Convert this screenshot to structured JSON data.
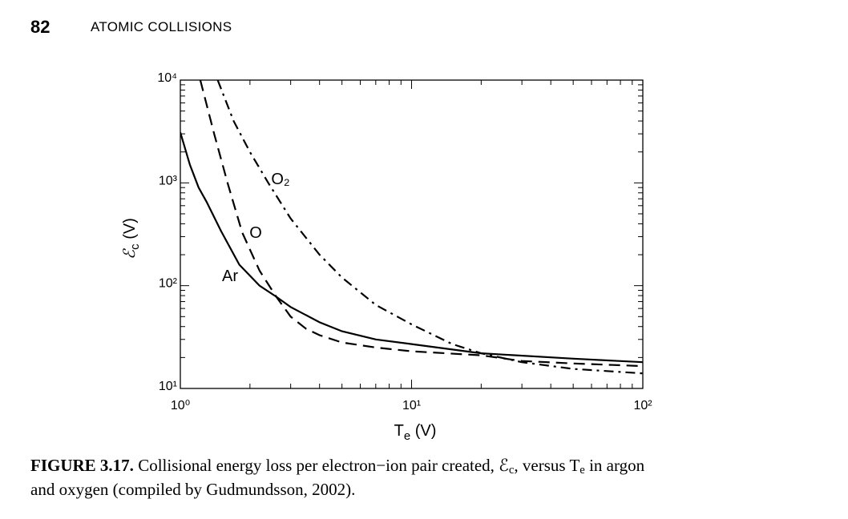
{
  "header": {
    "page_number": "82",
    "title": "ATOMIC COLLISIONS"
  },
  "chart_data": {
    "type": "line",
    "xlabel": {
      "symbol": "T",
      "sub": "e",
      "unit": "(V)"
    },
    "ylabel": {
      "symbol": "ℰ",
      "sub": "c",
      "unit": "(V)"
    },
    "xscale": "log",
    "yscale": "log",
    "xlim": [
      1,
      100
    ],
    "ylim": [
      10,
      10000
    ],
    "xticks": [
      {
        "value": 1,
        "label": "10⁰"
      },
      {
        "value": 10,
        "label": "10¹"
      },
      {
        "value": 100,
        "label": "10²"
      }
    ],
    "yticks": [
      {
        "value": 10,
        "label": "10¹"
      },
      {
        "value": 100,
        "label": "10²"
      },
      {
        "value": 1000,
        "label": "10³"
      },
      {
        "value": 10000,
        "label": "10⁴"
      }
    ],
    "grid": false,
    "series": [
      {
        "name": "Ar",
        "color": "#000000",
        "dash": "solid",
        "x": [
          1,
          1.1,
          1.2,
          1.3,
          1.5,
          1.8,
          2.2,
          2.6,
          3,
          4,
          5,
          7,
          10,
          20,
          50,
          100
        ],
        "values": [
          3100,
          1500,
          900,
          650,
          340,
          160,
          100,
          78,
          62,
          44,
          36,
          30,
          27,
          22,
          19.5,
          18
        ]
      },
      {
        "name": "O",
        "color": "#000000",
        "dash": "dashed",
        "x": [
          1.22,
          1.4,
          1.6,
          1.85,
          2.2,
          2.6,
          3,
          3.5,
          4,
          5,
          7,
          10,
          20,
          30,
          50,
          100
        ],
        "values": [
          10000,
          3000,
          1000,
          330,
          140,
          78,
          50,
          38,
          33,
          28,
          25,
          23,
          21,
          18.5,
          17.5,
          16.5
        ]
      },
      {
        "name": "O₂",
        "color": "#000000",
        "dash": "dashdot",
        "x": [
          1.45,
          1.7,
          2,
          2.4,
          3,
          4,
          5,
          7,
          10,
          15,
          20,
          30,
          50,
          100
        ],
        "values": [
          10000,
          4000,
          2000,
          1000,
          450,
          200,
          120,
          65,
          42,
          27,
          22,
          18,
          15.5,
          14
        ]
      }
    ]
  },
  "caption": {
    "label": "FIGURE 3.17.",
    "parts": [
      "Collisional energy loss per electron−ion pair created, ℰ",
      "c",
      ", versus T",
      "e",
      " in argon"
    ],
    "line2": "and oxygen (compiled by Gudmundsson, 2002)."
  }
}
